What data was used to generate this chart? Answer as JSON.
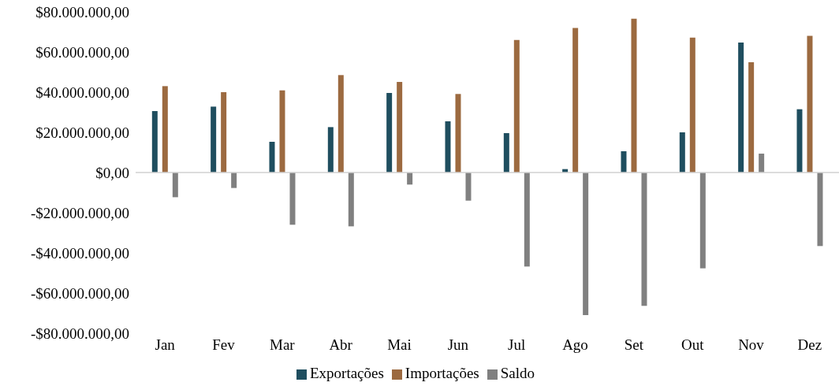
{
  "chart_data": {
    "type": "bar",
    "categories": [
      "Jan",
      "Fev",
      "Mar",
      "Abr",
      "Mai",
      "Jun",
      "Jul",
      "Ago",
      "Set",
      "Out",
      "Nov",
      "Dez"
    ],
    "series": [
      {
        "name": "Exportações",
        "color": "#1f4e5f",
        "values": [
          30600000,
          32800000,
          15300000,
          22600000,
          39600000,
          25500000,
          19600000,
          1700000,
          10600000,
          20000000,
          64700000,
          31500000
        ]
      },
      {
        "name": "Importações",
        "color": "#9c6a40",
        "values": [
          43000000,
          40000000,
          40900000,
          48500000,
          45100000,
          39100000,
          66000000,
          72000000,
          76600000,
          67200000,
          54900000,
          68000000
        ]
      },
      {
        "name": "Saldo",
        "color": "#808080",
        "values": [
          -12300000,
          -7700000,
          -26000000,
          -26800000,
          -6000000,
          -14000000,
          -46800000,
          -71000000,
          -66400000,
          -47700000,
          9400000,
          -36600000
        ]
      }
    ],
    "ylim": [
      -80000000,
      80000000
    ],
    "yticks": [
      {
        "value": -80000000,
        "label": "-$80.000.000,00"
      },
      {
        "value": -60000000,
        "label": "-$60.000.000,00"
      },
      {
        "value": -40000000,
        "label": "-$40.000.000,00"
      },
      {
        "value": -20000000,
        "label": "-$20.000.000,00"
      },
      {
        "value": 0,
        "label": "$0,00"
      },
      {
        "value": 20000000,
        "label": "$20.000.000,00"
      },
      {
        "value": 40000000,
        "label": "$40.000.000,00"
      },
      {
        "value": 60000000,
        "label": "$60.000.000,00"
      },
      {
        "value": 80000000,
        "label": "$80.000.000,00"
      }
    ],
    "legend": "bottom"
  }
}
